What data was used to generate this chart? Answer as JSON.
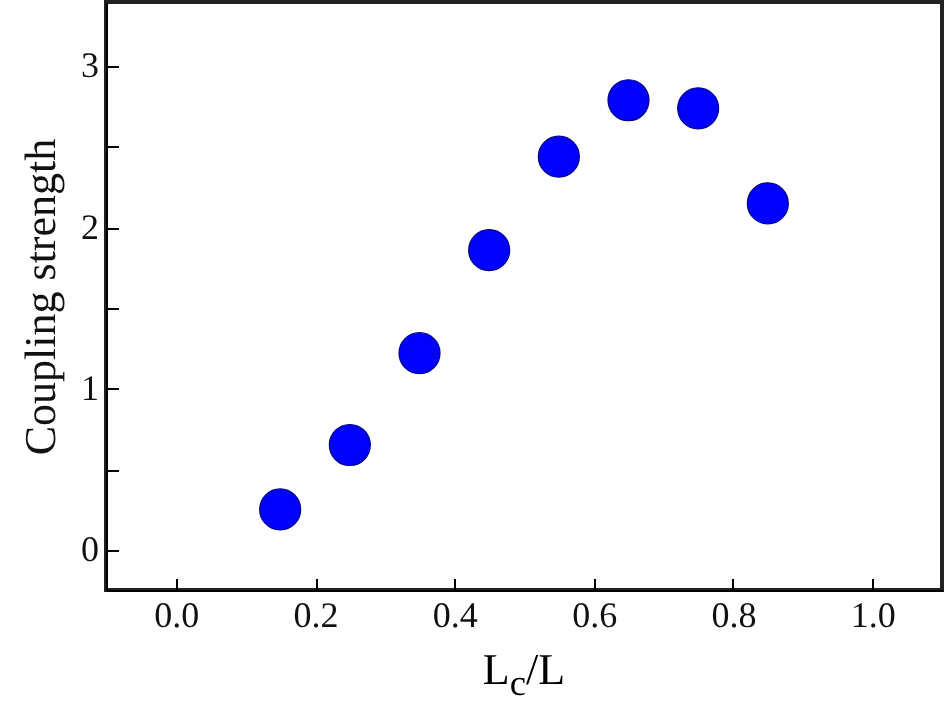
{
  "chart_data": {
    "type": "scatter",
    "xlabel": "L$_{c}$/L",
    "ylabel": "Coupling strength",
    "x": [
      0.15,
      0.25,
      0.35,
      0.45,
      0.55,
      0.65,
      0.75,
      0.85
    ],
    "series": [
      {
        "color": "#0000ff",
        "values": [
          0.25,
          0.65,
          1.22,
          1.86,
          2.44,
          2.79,
          2.74,
          2.15
        ]
      }
    ],
    "xlim": [
      -0.1,
      1.1
    ],
    "xticks": [
      {
        "value": 0,
        "label": "0.0"
      },
      0.2,
      0.4,
      0.6,
      0.8,
      {
        "value": 1,
        "label": "1.0"
      }
    ],
    "ylim": [
      -0.25,
      3.4
    ],
    "yticks": [
      0,
      {
        "value": 0.5,
        "label": null
      },
      1,
      {
        "value": 1.5,
        "label": null
      },
      2,
      {
        "value": 2.5,
        "label": null
      },
      3
    ],
    "marker": "circle",
    "grid": false
  }
}
